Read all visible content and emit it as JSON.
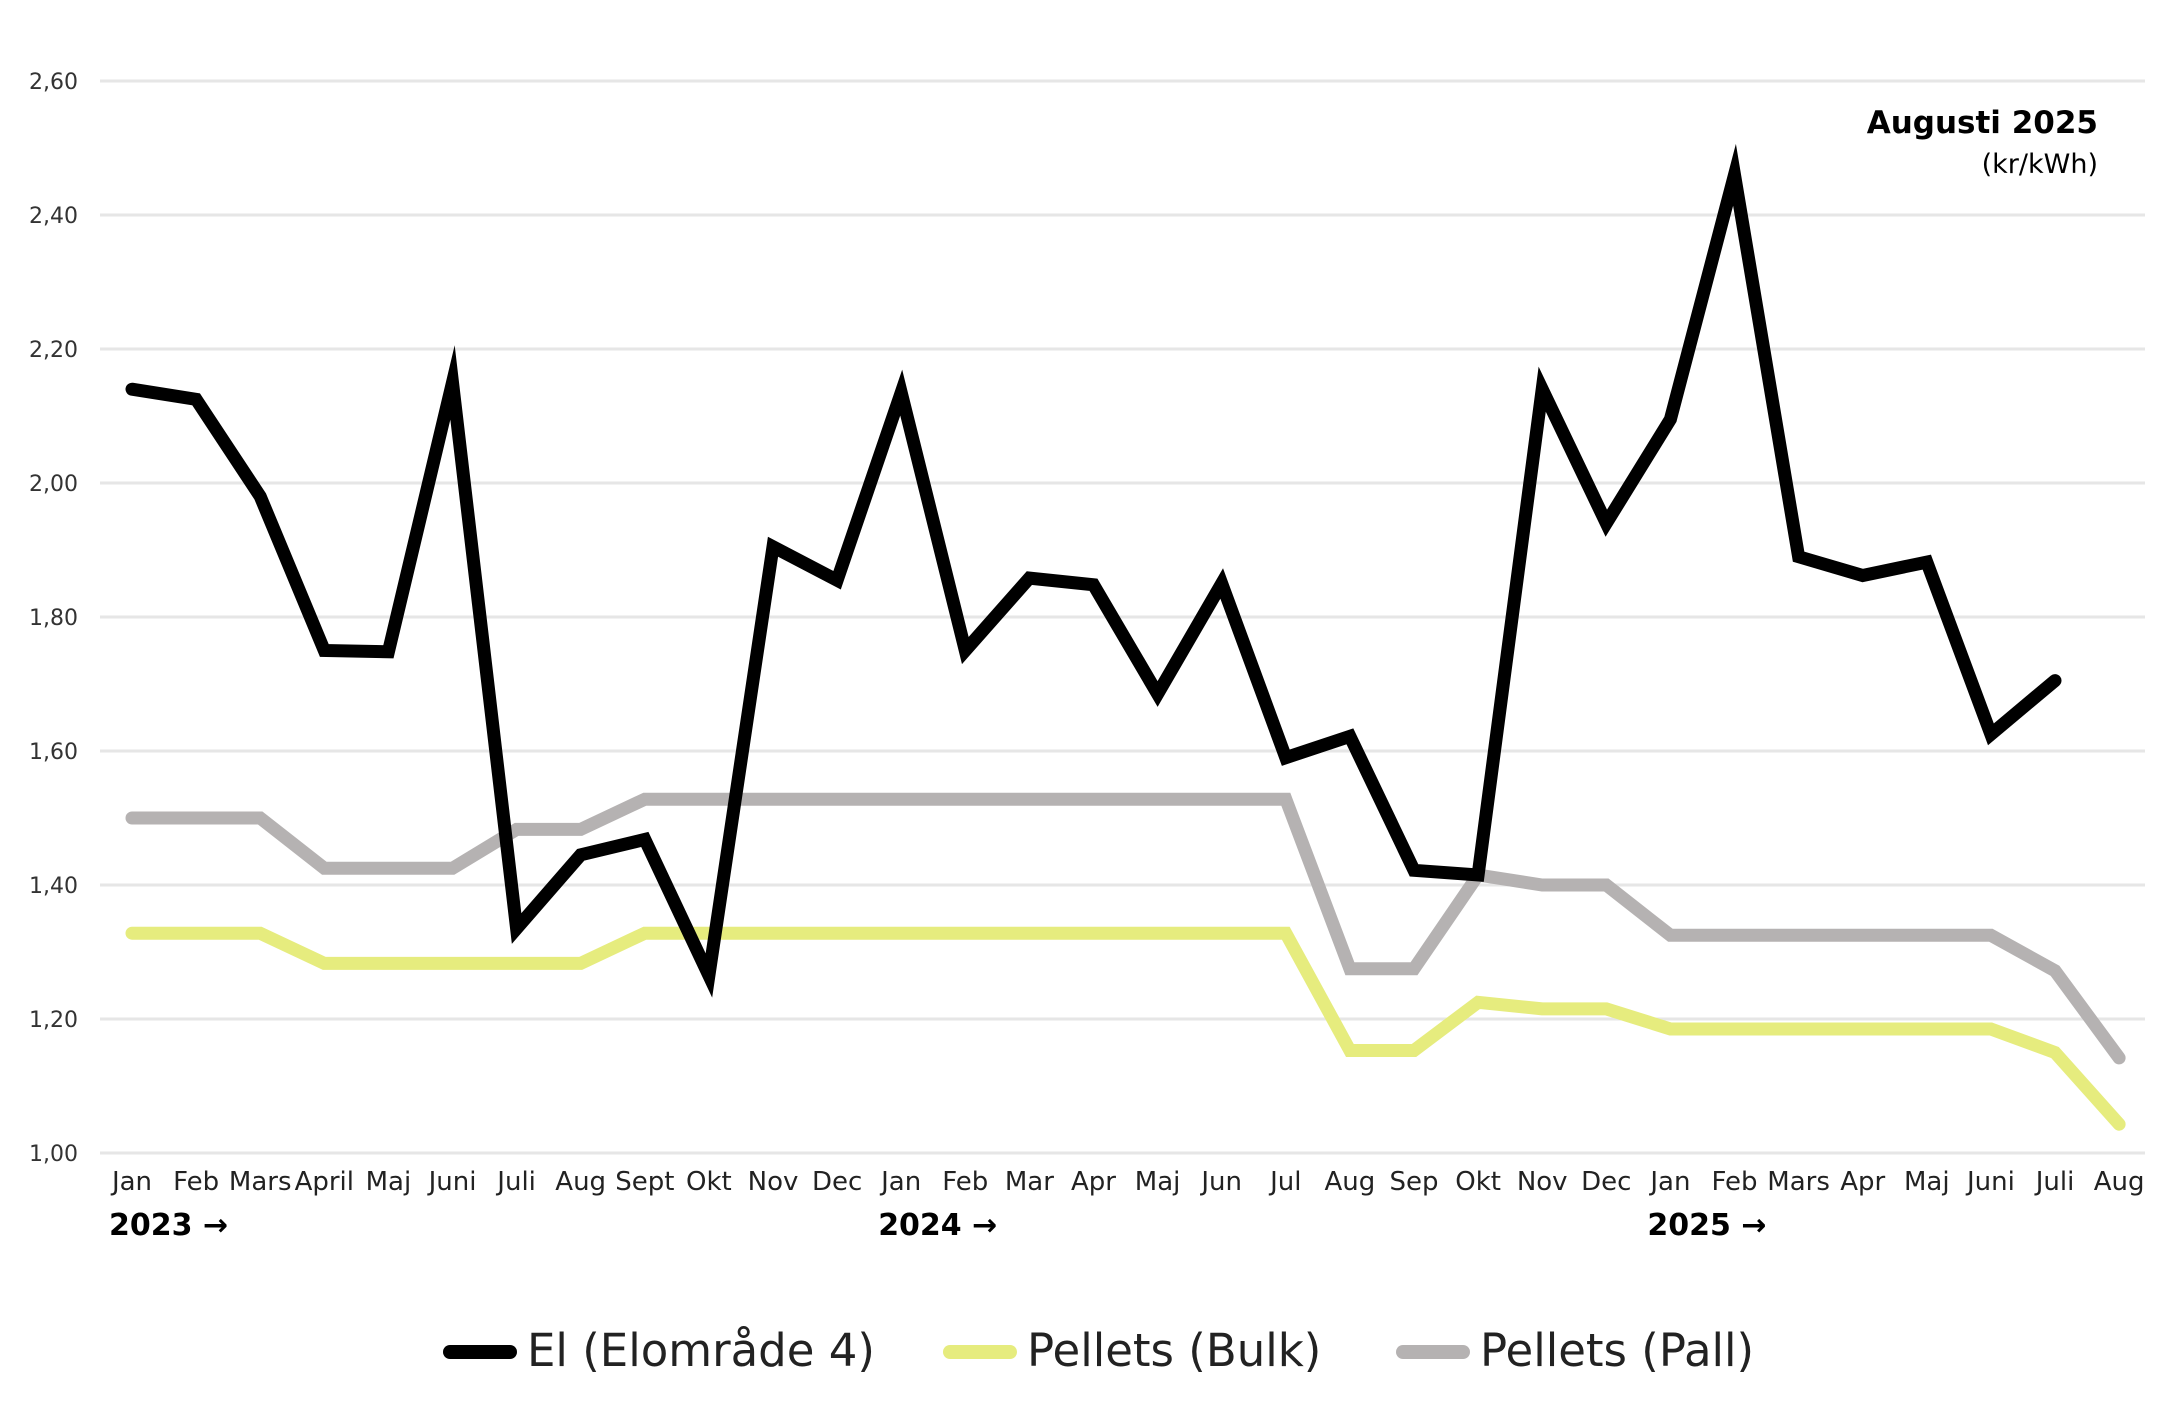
{
  "chart_data": {
    "type": "line",
    "annotation": {
      "title": "Augusti 2025",
      "unit": "(kr/kWh)"
    },
    "y_ticks": [
      "2,60",
      "2,40",
      "2,20",
      "2,00",
      "1,80",
      "1,60",
      "1,40",
      "1,20",
      "1,00"
    ],
    "ylim": [
      1.0,
      2.6
    ],
    "grid": true,
    "legend_position": "bottom",
    "categories": [
      "Jan",
      "Feb",
      "Mars",
      "April",
      "Maj",
      "Juni",
      "Juli",
      "Aug",
      "Sept",
      "Okt",
      "Nov",
      "Dec",
      "Jan",
      "Feb",
      "Mar",
      "Apr",
      "Maj",
      "Jun",
      "Jul",
      "Aug",
      "Sep",
      "Okt",
      "Nov",
      "Dec",
      "Jan",
      "Feb",
      "Mars",
      "Apr",
      "Maj",
      "Juni",
      "Juli",
      "Aug"
    ],
    "year_markers": [
      {
        "label": "2023 →",
        "index": 0
      },
      {
        "label": "2024 →",
        "index": 12
      },
      {
        "label": "2025 →",
        "index": 24
      }
    ],
    "series": [
      {
        "name": "El (Elområde 4)",
        "color": "#000000",
        "values": [
          2.14,
          2.125,
          1.98,
          1.75,
          1.748,
          2.15,
          1.335,
          1.445,
          1.468,
          1.265,
          1.905,
          1.855,
          2.135,
          1.75,
          1.858,
          1.848,
          1.685,
          1.85,
          1.59,
          1.622,
          1.422,
          1.415,
          2.14,
          1.94,
          2.095,
          2.46,
          1.89,
          1.862,
          1.882,
          1.625,
          1.705,
          null
        ]
      },
      {
        "name": "Pellets (Bulk)",
        "color": "#e6ec7e",
        "values": [
          1.328,
          1.328,
          1.328,
          1.283,
          1.283,
          1.283,
          1.283,
          1.283,
          1.328,
          1.328,
          1.328,
          1.328,
          1.328,
          1.328,
          1.328,
          1.328,
          1.328,
          1.328,
          1.328,
          1.153,
          1.153,
          1.225,
          1.215,
          1.215,
          1.185,
          1.185,
          1.185,
          1.185,
          1.185,
          1.185,
          1.15,
          1.043
        ]
      },
      {
        "name": "Pellets (Pall)",
        "color": "#b5b2b2",
        "values": [
          1.5,
          1.5,
          1.5,
          1.425,
          1.425,
          1.425,
          1.483,
          1.483,
          1.528,
          1.528,
          1.528,
          1.528,
          1.528,
          1.528,
          1.528,
          1.528,
          1.528,
          1.528,
          1.528,
          1.275,
          1.275,
          1.415,
          1.4,
          1.4,
          1.325,
          1.325,
          1.325,
          1.325,
          1.325,
          1.325,
          1.272,
          1.142
        ]
      }
    ]
  }
}
